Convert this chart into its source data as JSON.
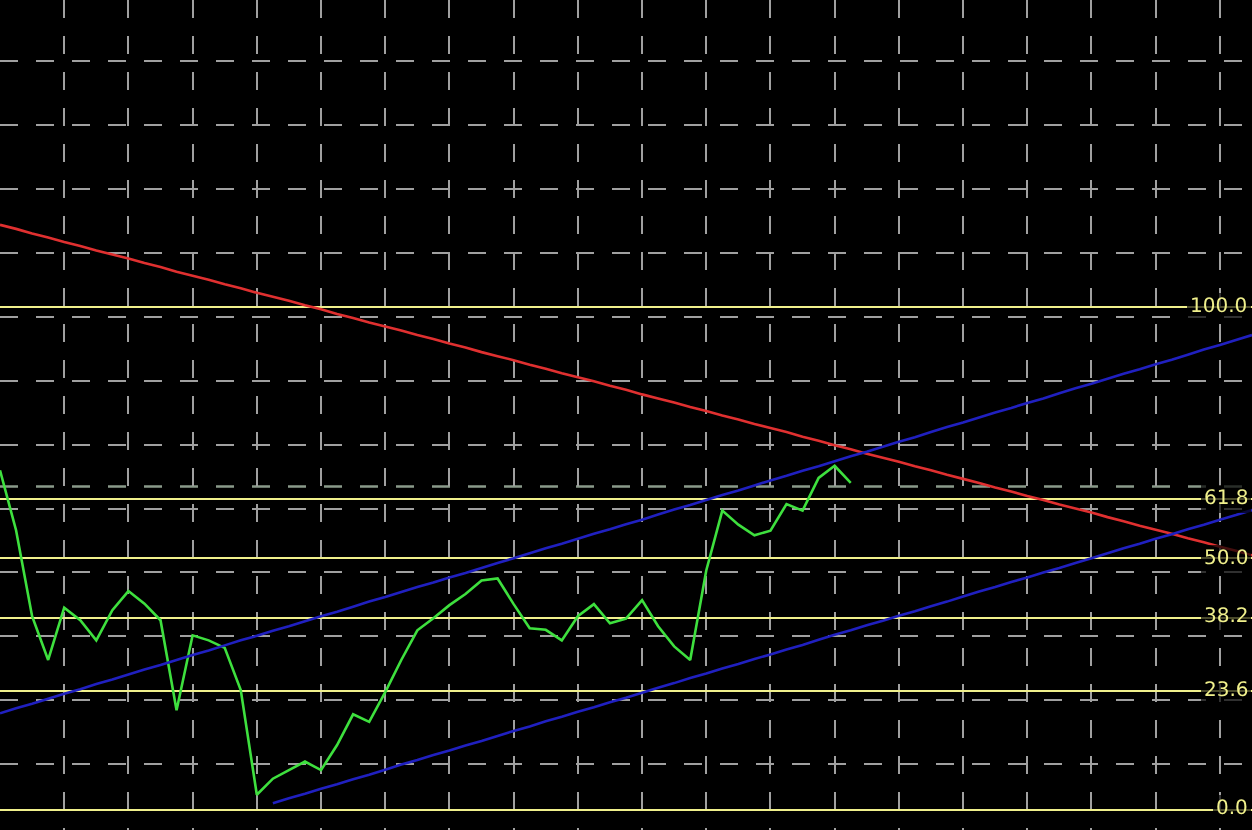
{
  "chart_data": {
    "type": "line",
    "categories": [
      null,
      null,
      null,
      null,
      null,
      null,
      null,
      null,
      null,
      null,
      null,
      null,
      null,
      null,
      null,
      null,
      null,
      null,
      null,
      null,
      null,
      null,
      null,
      null,
      null,
      null,
      null,
      null,
      null,
      null,
      null,
      null,
      null,
      null,
      null,
      null,
      null,
      null,
      null,
      null,
      null,
      null,
      null,
      null,
      null,
      null,
      null,
      null,
      null,
      null,
      null,
      null,
      null,
      null,
      null,
      null,
      null,
      null,
      null,
      null,
      null,
      null,
      null,
      null,
      null,
      null,
      null,
      null,
      null,
      null,
      null,
      null,
      null,
      null,
      null,
      null,
      null,
      null,
      null
    ],
    "series": [
      {
        "color": "#3ee03e",
        "values": [
          67.5,
          55.6,
          38.5,
          29.8,
          40.2,
          37.7,
          33.7,
          39.7,
          43.5,
          41,
          37.7,
          19.8,
          34.7,
          33.7,
          32.2,
          23.8,
          3,
          6.2,
          7.9,
          9.6,
          7.9,
          12.9,
          19,
          17.5,
          23.4,
          29.8,
          35.7,
          38.1,
          40.7,
          42.9,
          45.6,
          46,
          40.9,
          36.1,
          35.8,
          33.7,
          38.5,
          40.9,
          37.1,
          38,
          41.7,
          36.5,
          32.5,
          29.8,
          47.6,
          59.5,
          56.7,
          54.6,
          55.5,
          60.8,
          59.5,
          66,
          68.4,
          65,
          null,
          null,
          null,
          null,
          null,
          null,
          null,
          null,
          null,
          null,
          null,
          null,
          null,
          null,
          null,
          null,
          null,
          null,
          null,
          null,
          null,
          null,
          null,
          null,
          null
        ]
      },
      {
        "color": "#e03030",
        "values": [
          116.3,
          115.5,
          114.6,
          113.8,
          112.9,
          112.1,
          111.2,
          110.4,
          109.6,
          108.7,
          107.9,
          107.0,
          106.2,
          105.4,
          104.5,
          103.7,
          102.8,
          102.0,
          101.2,
          100.3,
          99.5,
          98.6,
          97.8,
          96.9,
          96.1,
          95.3,
          94.4,
          93.6,
          92.7,
          91.9,
          91.0,
          90.2,
          89.4,
          88.5,
          87.7,
          86.8,
          86.0,
          85.2,
          84.3,
          83.5,
          82.6,
          81.8,
          81.0,
          80.1,
          79.3,
          78.4,
          77.6,
          76.7,
          75.9,
          75.1,
          74.2,
          73.4,
          72.5,
          71.7,
          70.8,
          70.0,
          69.2,
          68.3,
          67.5,
          66.6,
          65.8,
          65.0,
          64.1,
          63.3,
          62.4,
          61.6,
          60.7,
          59.9,
          59.1,
          58.2,
          57.4,
          56.5,
          55.7,
          54.9,
          54.0,
          53.2,
          52.3,
          51.5,
          50.6
        ]
      },
      {
        "color": "#2020c0",
        "values": [
          19.2,
          20.2,
          21.1,
          22.1,
          23.1,
          24.0,
          25.0,
          25.9,
          26.9,
          27.9,
          28.8,
          29.8,
          30.8,
          31.7,
          32.7,
          33.7,
          34.6,
          35.6,
          36.5,
          37.5,
          38.5,
          39.4,
          40.4,
          41.4,
          42.3,
          43.3,
          44.3,
          45.2,
          46.2,
          47.1,
          48.1,
          49.1,
          50.0,
          51.0,
          52.0,
          52.9,
          53.9,
          54.9,
          55.8,
          56.8,
          57.7,
          58.7,
          59.7,
          60.6,
          61.6,
          62.6,
          63.5,
          64.5,
          65.5,
          66.4,
          67.4,
          68.3,
          69.3,
          70.3,
          71.2,
          72.2,
          73.2,
          74.1,
          75.1,
          76.1,
          77.0,
          78.0,
          79.0,
          79.9,
          80.9,
          81.8,
          82.8,
          83.8,
          84.7,
          85.7,
          86.7,
          87.6,
          88.6,
          89.5,
          90.5,
          91.5,
          92.4,
          93.4,
          94.4
        ]
      },
      {
        "color": "#2020c0",
        "values": [
          null,
          null,
          null,
          null,
          null,
          null,
          null,
          null,
          null,
          null,
          null,
          null,
          null,
          null,
          null,
          null,
          null,
          1.3,
          2.3,
          3.2,
          4.2,
          5.1,
          6.1,
          7.0,
          8.0,
          9.0,
          9.9,
          10.9,
          11.8,
          12.8,
          13.7,
          14.7,
          15.7,
          16.6,
          17.6,
          18.5,
          19.5,
          20.4,
          21.4,
          22.3,
          23.3,
          24.3,
          25.2,
          26.2,
          27.1,
          28.1,
          29.0,
          30.0,
          30.9,
          31.9,
          32.8,
          33.8,
          34.8,
          35.7,
          36.7,
          37.6,
          38.6,
          39.5,
          40.5,
          41.4,
          42.4,
          43.4,
          44.3,
          45.3,
          46.2,
          47.2,
          48.1,
          49.1,
          50.0,
          51.0,
          52.0,
          52.9,
          53.9,
          54.8,
          55.8,
          56.7,
          57.7,
          58.6,
          59.6
        ]
      }
    ],
    "ylim": [
      -4,
      161
    ],
    "yticks": [
      {
        "value": 0,
        "label": "0.0"
      },
      23.6,
      38.2,
      {
        "value": 50,
        "label": "50.0"
      },
      61.8,
      {
        "value": 100,
        "label": "100.0"
      },
      {
        "value": 9.1,
        "label": null
      },
      {
        "value": 21.8,
        "label": null
      },
      {
        "value": 34.5,
        "label": null
      },
      {
        "value": 47.2,
        "label": null
      },
      {
        "value": 59.9,
        "label": null
      },
      {
        "value": 72.6,
        "label": null
      },
      {
        "value": 85.3,
        "label": null
      },
      {
        "value": 98.0,
        "label": null
      },
      {
        "value": 110.7,
        "label": null
      },
      {
        "value": 123.4,
        "label": null
      },
      {
        "value": 136.1,
        "label": null
      },
      {
        "value": 148.8,
        "label": null
      }
    ],
    "tick_labels": "y",
    "grid": true,
    "marker": "none",
    "line_style": "solid",
    "ref_lines": [
      {
        "axis": "y",
        "value": 64.3,
        "label": null,
        "color": "#8a9a8a",
        "line_style": "dashed"
      }
    ]
  }
}
